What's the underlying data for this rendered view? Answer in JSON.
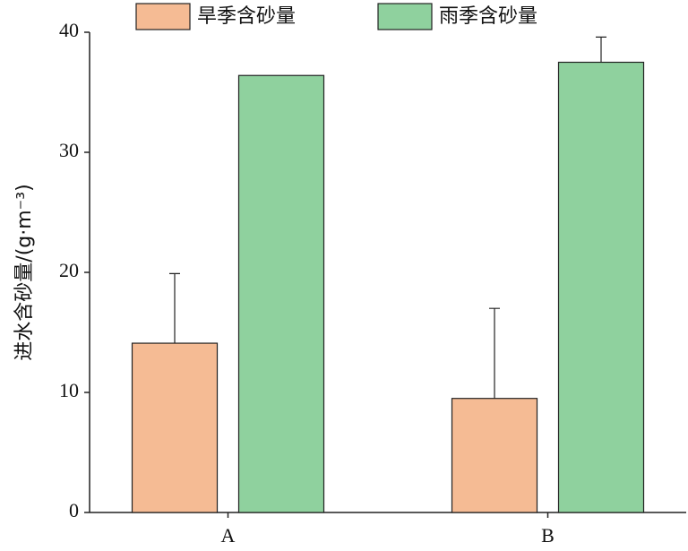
{
  "chart_data": {
    "type": "bar",
    "categories": [
      "A",
      "B"
    ],
    "series": [
      {
        "name": "旱季含砂量",
        "color": "#f5bb94",
        "values": [
          14.1,
          9.5
        ],
        "errors": [
          5.8,
          7.5
        ]
      },
      {
        "name": "雨季含砂量",
        "color": "#8fd19e",
        "values": [
          36.4,
          37.5
        ],
        "errors": [
          null,
          2.1
        ]
      }
    ],
    "y_label": "进水含砂量/(g·m⁻³)",
    "ylim": [
      0,
      40
    ],
    "yticks": [
      0,
      10,
      20,
      30,
      40
    ],
    "grid": false
  }
}
